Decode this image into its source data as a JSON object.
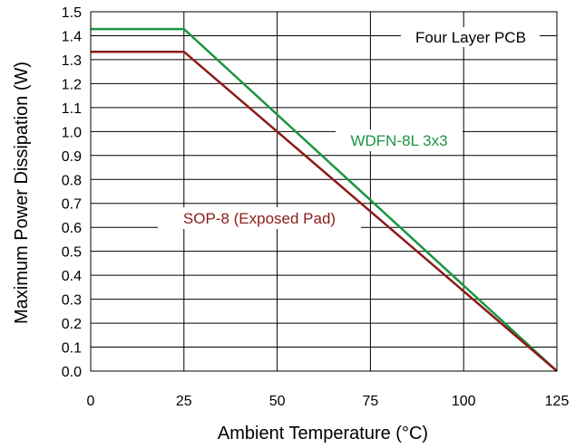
{
  "chart_data": {
    "type": "line",
    "title": "",
    "xlabel": "Ambient Temperature (°C)",
    "ylabel": "Maximum Power Dissipation (W)",
    "xlim": [
      0,
      125
    ],
    "ylim": [
      0.0,
      1.5
    ],
    "x_ticks": [
      "0",
      "25",
      "50",
      "75",
      "100",
      "125"
    ],
    "y_ticks": [
      "0.0",
      "0.1",
      "0.2",
      "0.3",
      "0.4",
      "0.5",
      "0.6",
      "0.7",
      "0.8",
      "0.9",
      "1.0",
      "1.1",
      "1.2",
      "1.3",
      "1.4",
      "1.5"
    ],
    "grid": true,
    "annotation": "Four Layer PCB",
    "series": [
      {
        "name": "WDFN-8L 3x3",
        "color": "#1a9641",
        "x": [
          0,
          25,
          125
        ],
        "y": [
          1.428,
          1.428,
          0.0
        ]
      },
      {
        "name": "SOP-8 (Exposed Pad)",
        "color": "#8b1a1a",
        "x": [
          0,
          25,
          125
        ],
        "y": [
          1.333,
          1.333,
          0.0
        ]
      }
    ]
  }
}
